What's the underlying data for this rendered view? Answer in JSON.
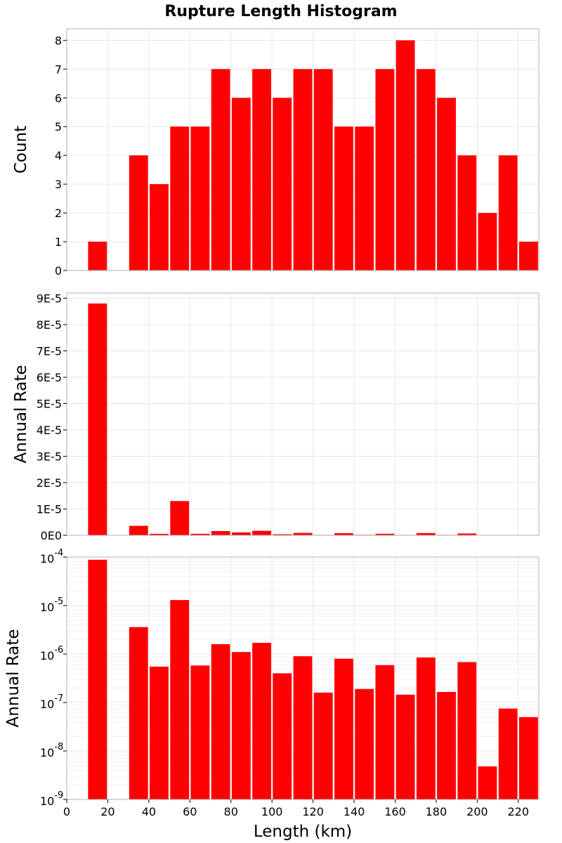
{
  "title": "Rupture Length Histogram",
  "chart_data": [
    {
      "type": "bar",
      "ylabel": "Count",
      "xlim": [
        0,
        230
      ],
      "ylim": [
        0,
        8.4
      ],
      "yticks": [
        0,
        1,
        2,
        3,
        4,
        5,
        6,
        7,
        8
      ],
      "ytick_labels": [
        "0",
        "1",
        "2",
        "3",
        "4",
        "5",
        "6",
        "7",
        "8"
      ],
      "color": "#ff0000",
      "bins": [
        10,
        20,
        30,
        40,
        50,
        60,
        70,
        80,
        90,
        100,
        110,
        120,
        130,
        140,
        150,
        160,
        170,
        180,
        190,
        200,
        210,
        220
      ],
      "values": [
        1,
        0,
        4,
        3,
        5,
        5,
        7,
        6,
        7,
        6,
        7,
        7,
        5,
        5,
        7,
        8,
        7,
        6,
        4,
        2,
        4,
        1
      ]
    },
    {
      "type": "bar",
      "ylabel": "Annual Rate",
      "xlim": [
        0,
        230
      ],
      "ylim": [
        0,
        9.2e-05
      ],
      "yticks": [
        0,
        1e-05,
        2e-05,
        3e-05,
        4e-05,
        5e-05,
        6e-05,
        7e-05,
        8e-05,
        9e-05
      ],
      "ytick_labels": [
        "0E0",
        "1E-5",
        "2E-5",
        "3E-5",
        "4E-5",
        "5E-5",
        "6E-5",
        "7E-5",
        "8E-5",
        "9E-5"
      ],
      "color": "#ff0000",
      "bins": [
        10,
        20,
        30,
        40,
        50,
        60,
        70,
        80,
        90,
        100,
        110,
        120,
        130,
        140,
        150,
        160,
        170,
        180,
        190,
        200,
        210,
        220
      ],
      "values": [
        8.8e-05,
        0,
        3.6e-06,
        5.5e-07,
        1.3e-05,
        5.8e-07,
        1.6e-06,
        1.1e-06,
        1.7e-06,
        4e-07,
        9e-07,
        1.6e-07,
        8e-07,
        1.9e-07,
        5.9e-07,
        1.45e-07,
        8.5e-07,
        1.65e-07,
        6.8e-07,
        4.8e-09,
        7.5e-08,
        5e-08
      ]
    },
    {
      "type": "bar",
      "scale": "log",
      "ylabel": "Annual Rate",
      "xlabel": "Length (km)",
      "xlim": [
        0,
        230
      ],
      "ylim": [
        1e-09,
        0.0001
      ],
      "yticks": [
        1e-09,
        1e-08,
        1e-07,
        1e-06,
        1e-05,
        0.0001
      ],
      "ytick_exponents": [
        "-9",
        "-8",
        "-7",
        "-6",
        "-5",
        "-4"
      ],
      "xticks": [
        0,
        20,
        40,
        60,
        80,
        100,
        120,
        140,
        160,
        180,
        200,
        220
      ],
      "xtick_labels": [
        "0",
        "20",
        "40",
        "60",
        "80",
        "100",
        "120",
        "140",
        "160",
        "180",
        "200",
        "220"
      ],
      "color": "#ff0000",
      "bins": [
        10,
        20,
        30,
        40,
        50,
        60,
        70,
        80,
        90,
        100,
        110,
        120,
        130,
        140,
        150,
        160,
        170,
        180,
        190,
        200,
        210,
        220
      ],
      "values": [
        8.8e-05,
        0,
        3.6e-06,
        5.5e-07,
        1.3e-05,
        5.8e-07,
        1.6e-06,
        1.1e-06,
        1.7e-06,
        4e-07,
        9e-07,
        1.6e-07,
        8e-07,
        1.9e-07,
        5.9e-07,
        1.45e-07,
        8.5e-07,
        1.65e-07,
        6.8e-07,
        4.8e-09,
        7.5e-08,
        5e-08
      ]
    }
  ]
}
